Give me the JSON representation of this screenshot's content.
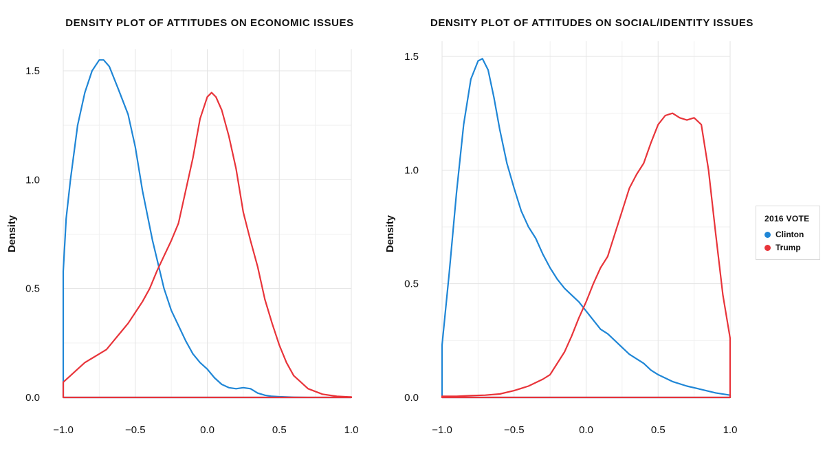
{
  "legend": {
    "title": "2016 VOTE",
    "items": [
      {
        "label": "Clinton",
        "color": "#1f86d6"
      },
      {
        "label": "Trump",
        "color": "#e8343a"
      }
    ]
  },
  "chart_data": [
    {
      "type": "line",
      "title": "DENSITY PLOT OF ATTITUDES ON ECONOMIC ISSUES",
      "xlabel": "",
      "ylabel": "Density",
      "xlim": [
        -1.0,
        1.0
      ],
      "ylim": [
        0,
        1.6
      ],
      "xticks": [
        -1.0,
        -0.5,
        0.0,
        0.5,
        1.0
      ],
      "xtick_labels": [
        "−1.0",
        "−0.5",
        "0.0",
        "0.5",
        "1.0"
      ],
      "yticks": [
        0.0,
        0.5,
        1.0,
        1.5
      ],
      "ytick_labels": [
        "0.0",
        "0.5",
        "1.0",
        "1.5"
      ],
      "grid": true,
      "series": [
        {
          "name": "Clinton",
          "color": "#1f86d6",
          "x": [
            -1.0,
            -0.98,
            -0.95,
            -0.9,
            -0.85,
            -0.8,
            -0.75,
            -0.72,
            -0.68,
            -0.62,
            -0.55,
            -0.5,
            -0.45,
            -0.38,
            -0.3,
            -0.25,
            -0.2,
            -0.15,
            -0.1,
            -0.05,
            0.0,
            0.05,
            0.1,
            0.15,
            0.2,
            0.25,
            0.3,
            0.35,
            0.4,
            0.45,
            0.5,
            0.6,
            0.7,
            0.8,
            0.9,
            1.0
          ],
          "y": [
            0.58,
            0.82,
            1.0,
            1.25,
            1.4,
            1.5,
            1.55,
            1.55,
            1.52,
            1.42,
            1.3,
            1.15,
            0.95,
            0.72,
            0.5,
            0.4,
            0.33,
            0.26,
            0.2,
            0.16,
            0.13,
            0.09,
            0.06,
            0.045,
            0.04,
            0.045,
            0.04,
            0.02,
            0.01,
            0.005,
            0.003,
            0.001,
            0.0,
            0.0,
            0.0,
            0.0
          ]
        },
        {
          "name": "Trump",
          "color": "#e8343a",
          "x": [
            -1.0,
            -0.95,
            -0.9,
            -0.85,
            -0.8,
            -0.75,
            -0.7,
            -0.65,
            -0.6,
            -0.55,
            -0.5,
            -0.45,
            -0.4,
            -0.35,
            -0.3,
            -0.25,
            -0.2,
            -0.15,
            -0.1,
            -0.05,
            0.0,
            0.03,
            0.06,
            0.1,
            0.15,
            0.2,
            0.25,
            0.3,
            0.35,
            0.4,
            0.45,
            0.5,
            0.55,
            0.6,
            0.65,
            0.7,
            0.8,
            0.9,
            1.0
          ],
          "y": [
            0.07,
            0.1,
            0.13,
            0.16,
            0.18,
            0.2,
            0.22,
            0.26,
            0.3,
            0.34,
            0.39,
            0.44,
            0.5,
            0.58,
            0.65,
            0.72,
            0.8,
            0.95,
            1.1,
            1.28,
            1.38,
            1.4,
            1.38,
            1.32,
            1.2,
            1.05,
            0.85,
            0.72,
            0.6,
            0.45,
            0.34,
            0.24,
            0.16,
            0.1,
            0.07,
            0.04,
            0.015,
            0.005,
            0.002
          ]
        }
      ]
    },
    {
      "type": "line",
      "title": "DENSITY PLOT OF ATTITUDES ON SOCIAL/IDENTITY ISSUES",
      "xlabel": "",
      "ylabel": "Density",
      "xlim": [
        -1.0,
        1.0
      ],
      "ylim": [
        0,
        1.6
      ],
      "xticks": [
        -1.0,
        -0.5,
        0.0,
        0.5,
        1.0
      ],
      "xtick_labels": [
        "−1.0",
        "−0.5",
        "0.0",
        "0.5",
        "1.0"
      ],
      "yticks": [
        0.0,
        0.5,
        1.0,
        1.5
      ],
      "ytick_labels": [
        "0.0",
        "0.5",
        "1.0",
        "1.5"
      ],
      "grid": true,
      "series": [
        {
          "name": "Clinton",
          "color": "#1f86d6",
          "x": [
            -1.0,
            -0.95,
            -0.9,
            -0.85,
            -0.8,
            -0.75,
            -0.72,
            -0.68,
            -0.64,
            -0.6,
            -0.55,
            -0.5,
            -0.45,
            -0.4,
            -0.35,
            -0.3,
            -0.25,
            -0.2,
            -0.15,
            -0.1,
            -0.05,
            0.0,
            0.05,
            0.1,
            0.15,
            0.2,
            0.25,
            0.3,
            0.35,
            0.4,
            0.45,
            0.5,
            0.6,
            0.7,
            0.8,
            0.9,
            1.0
          ],
          "y": [
            0.23,
            0.55,
            0.9,
            1.2,
            1.4,
            1.48,
            1.49,
            1.44,
            1.32,
            1.18,
            1.03,
            0.92,
            0.82,
            0.75,
            0.7,
            0.63,
            0.57,
            0.52,
            0.48,
            0.45,
            0.42,
            0.38,
            0.34,
            0.3,
            0.28,
            0.25,
            0.22,
            0.19,
            0.17,
            0.15,
            0.12,
            0.1,
            0.07,
            0.05,
            0.035,
            0.02,
            0.01
          ]
        },
        {
          "name": "Trump",
          "color": "#e8343a",
          "x": [
            -1.0,
            -0.9,
            -0.8,
            -0.7,
            -0.6,
            -0.5,
            -0.4,
            -0.3,
            -0.25,
            -0.2,
            -0.15,
            -0.1,
            -0.05,
            0.0,
            0.05,
            0.1,
            0.15,
            0.2,
            0.25,
            0.3,
            0.35,
            0.4,
            0.45,
            0.5,
            0.55,
            0.6,
            0.65,
            0.7,
            0.75,
            0.8,
            0.85,
            0.9,
            0.95,
            1.0
          ],
          "y": [
            0.005,
            0.005,
            0.008,
            0.01,
            0.015,
            0.03,
            0.05,
            0.08,
            0.1,
            0.15,
            0.2,
            0.27,
            0.35,
            0.42,
            0.5,
            0.57,
            0.62,
            0.72,
            0.82,
            0.92,
            0.98,
            1.03,
            1.12,
            1.2,
            1.24,
            1.25,
            1.23,
            1.22,
            1.23,
            1.2,
            1.0,
            0.72,
            0.45,
            0.26
          ]
        }
      ]
    }
  ]
}
